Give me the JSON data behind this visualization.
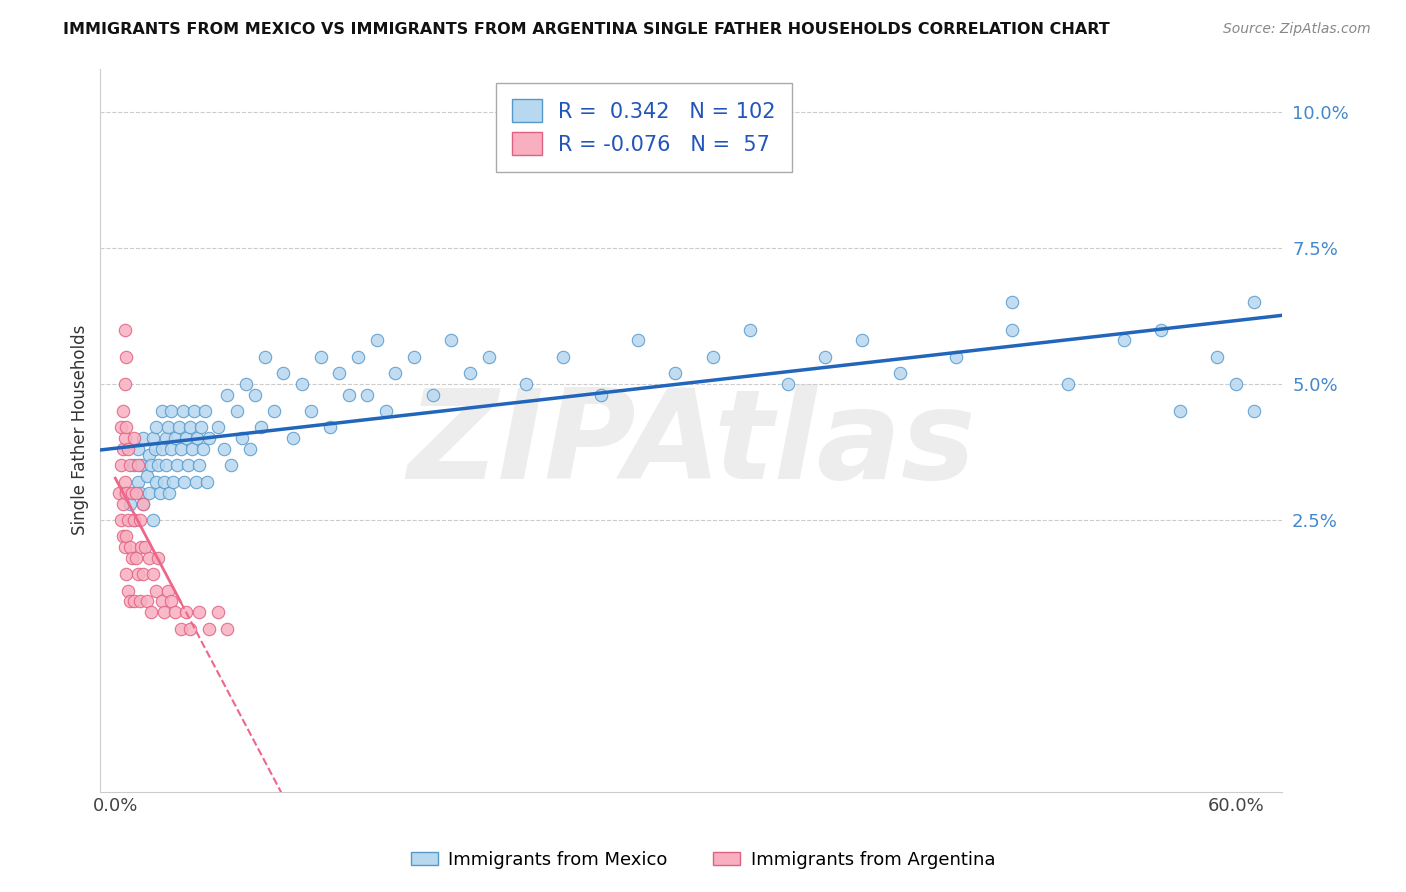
{
  "title": "IMMIGRANTS FROM MEXICO VS IMMIGRANTS FROM ARGENTINA SINGLE FATHER HOUSEHOLDS CORRELATION CHART",
  "source": "Source: ZipAtlas.com",
  "ylabel": "Single Father Households",
  "legend_label_1": "Immigrants from Mexico",
  "legend_label_2": "Immigrants from Argentina",
  "r1": 0.342,
  "n1": 102,
  "r2": -0.076,
  "n2": 57,
  "color_mexico_fill": "#b8d8f0",
  "color_mexico_edge": "#5599cc",
  "color_argentina_fill": "#f8b0c0",
  "color_argentina_edge": "#e06080",
  "color_mexico_line": "#2266bb",
  "color_argentina_line": "#ee6688",
  "watermark": "ZIPAtlas",
  "xlim": [
    -0.008,
    0.625
  ],
  "ylim": [
    -0.025,
    0.108
  ],
  "mexico_x": [
    0.005,
    0.008,
    0.01,
    0.01,
    0.012,
    0.012,
    0.013,
    0.014,
    0.015,
    0.015,
    0.017,
    0.018,
    0.018,
    0.019,
    0.02,
    0.02,
    0.021,
    0.022,
    0.022,
    0.023,
    0.024,
    0.025,
    0.025,
    0.026,
    0.027,
    0.027,
    0.028,
    0.029,
    0.03,
    0.03,
    0.031,
    0.032,
    0.033,
    0.034,
    0.035,
    0.036,
    0.037,
    0.038,
    0.039,
    0.04,
    0.041,
    0.042,
    0.043,
    0.044,
    0.045,
    0.046,
    0.047,
    0.048,
    0.049,
    0.05,
    0.055,
    0.058,
    0.06,
    0.062,
    0.065,
    0.068,
    0.07,
    0.072,
    0.075,
    0.078,
    0.08,
    0.085,
    0.09,
    0.095,
    0.1,
    0.105,
    0.11,
    0.115,
    0.12,
    0.125,
    0.13,
    0.135,
    0.14,
    0.145,
    0.15,
    0.16,
    0.17,
    0.18,
    0.19,
    0.2,
    0.22,
    0.24,
    0.26,
    0.28,
    0.3,
    0.32,
    0.34,
    0.36,
    0.38,
    0.4,
    0.42,
    0.45,
    0.48,
    0.51,
    0.54,
    0.57,
    0.59,
    0.6,
    0.61,
    0.61,
    0.56,
    0.48
  ],
  "mexico_y": [
    0.03,
    0.028,
    0.035,
    0.025,
    0.038,
    0.032,
    0.03,
    0.035,
    0.028,
    0.04,
    0.033,
    0.037,
    0.03,
    0.035,
    0.04,
    0.025,
    0.038,
    0.032,
    0.042,
    0.035,
    0.03,
    0.038,
    0.045,
    0.032,
    0.04,
    0.035,
    0.042,
    0.03,
    0.038,
    0.045,
    0.032,
    0.04,
    0.035,
    0.042,
    0.038,
    0.045,
    0.032,
    0.04,
    0.035,
    0.042,
    0.038,
    0.045,
    0.032,
    0.04,
    0.035,
    0.042,
    0.038,
    0.045,
    0.032,
    0.04,
    0.042,
    0.038,
    0.048,
    0.035,
    0.045,
    0.04,
    0.05,
    0.038,
    0.048,
    0.042,
    0.055,
    0.045,
    0.052,
    0.04,
    0.05,
    0.045,
    0.055,
    0.042,
    0.052,
    0.048,
    0.055,
    0.048,
    0.058,
    0.045,
    0.052,
    0.055,
    0.048,
    0.058,
    0.052,
    0.055,
    0.05,
    0.055,
    0.048,
    0.058,
    0.052,
    0.055,
    0.06,
    0.05,
    0.055,
    0.058,
    0.052,
    0.055,
    0.06,
    0.05,
    0.058,
    0.045,
    0.055,
    0.05,
    0.045,
    0.065,
    0.06,
    0.065
  ],
  "argentina_x": [
    0.002,
    0.003,
    0.003,
    0.003,
    0.004,
    0.004,
    0.004,
    0.004,
    0.005,
    0.005,
    0.005,
    0.005,
    0.006,
    0.006,
    0.006,
    0.006,
    0.007,
    0.007,
    0.007,
    0.008,
    0.008,
    0.008,
    0.009,
    0.009,
    0.01,
    0.01,
    0.01,
    0.011,
    0.011,
    0.012,
    0.012,
    0.013,
    0.013,
    0.014,
    0.015,
    0.015,
    0.016,
    0.017,
    0.018,
    0.019,
    0.02,
    0.022,
    0.023,
    0.025,
    0.026,
    0.028,
    0.03,
    0.032,
    0.035,
    0.038,
    0.04,
    0.045,
    0.05,
    0.055,
    0.06,
    0.005,
    0.006
  ],
  "argentina_y": [
    0.03,
    0.042,
    0.025,
    0.035,
    0.038,
    0.028,
    0.045,
    0.022,
    0.05,
    0.032,
    0.04,
    0.02,
    0.042,
    0.03,
    0.022,
    0.015,
    0.038,
    0.025,
    0.012,
    0.035,
    0.02,
    0.01,
    0.03,
    0.018,
    0.04,
    0.025,
    0.01,
    0.03,
    0.018,
    0.035,
    0.015,
    0.025,
    0.01,
    0.02,
    0.028,
    0.015,
    0.02,
    0.01,
    0.018,
    0.008,
    0.015,
    0.012,
    0.018,
    0.01,
    0.008,
    0.012,
    0.01,
    0.008,
    0.005,
    0.008,
    0.005,
    0.008,
    0.005,
    0.008,
    0.005,
    0.06,
    0.055
  ]
}
